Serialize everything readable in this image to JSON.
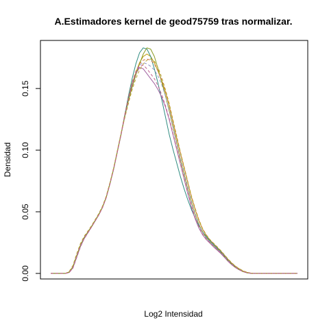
{
  "chart_data": {
    "type": "line",
    "title": "A.Estimadores kernel de geod75759 tras normalizar.",
    "xlabel": "Log2 Intensidad",
    "ylabel": "Densidad",
    "ylim": [
      -0.0045,
      0.189
    ],
    "y_ticks": [
      {
        "value": 0.0,
        "label": "0.00"
      },
      {
        "value": 0.05,
        "label": "0.05"
      },
      {
        "value": 0.1,
        "label": "0.10"
      },
      {
        "value": 0.15,
        "label": "0.15"
      }
    ],
    "grid": false,
    "legend": "none",
    "x": [
      0.0,
      0.015,
      0.03,
      0.045,
      0.06,
      0.075,
      0.09,
      0.105,
      0.12,
      0.135,
      0.15,
      0.165,
      0.18,
      0.195,
      0.21,
      0.225,
      0.24,
      0.255,
      0.27,
      0.285,
      0.3,
      0.315,
      0.33,
      0.345,
      0.36,
      0.375,
      0.39,
      0.405,
      0.42,
      0.435,
      0.45,
      0.465,
      0.48,
      0.495,
      0.51,
      0.525,
      0.54,
      0.555,
      0.57,
      0.585,
      0.6,
      0.615,
      0.63,
      0.645,
      0.66,
      0.675,
      0.69,
      0.705,
      0.72,
      0.735,
      0.75,
      0.765,
      0.78,
      0.795,
      0.81,
      0.825,
      0.84,
      0.855,
      0.87,
      0.885,
      0.9,
      0.915,
      0.93,
      0.945,
      0.96,
      0.975,
      1.0
    ],
    "series": [
      {
        "color": "#C0A010",
        "dash": "",
        "values": [
          0.0,
          0.0,
          0.0,
          0.0,
          0.0,
          0.0012,
          0.0055,
          0.0145,
          0.0228,
          0.029,
          0.0335,
          0.038,
          0.043,
          0.048,
          0.054,
          0.062,
          0.073,
          0.085,
          0.099,
          0.113,
          0.128,
          0.142,
          0.154,
          0.163,
          0.171,
          0.176,
          0.178,
          0.176,
          0.171,
          0.164,
          0.156,
          0.147,
          0.136,
          0.123,
          0.11,
          0.098,
          0.086,
          0.074,
          0.062,
          0.052,
          0.043,
          0.036,
          0.031,
          0.027,
          0.024,
          0.021,
          0.018,
          0.0145,
          0.011,
          0.008,
          0.0055,
          0.0035,
          0.0018,
          0.0008,
          0.0002,
          0.0,
          0.0,
          0.0,
          0.0,
          0.0,
          0.0,
          0.0,
          0.0,
          0.0,
          0.0,
          0.0,
          0.0
        ]
      },
      {
        "color": "#2E8B80",
        "dash": "",
        "values": [
          0.0,
          0.0,
          0.0,
          0.0,
          0.0,
          0.001,
          0.005,
          0.014,
          0.0225,
          0.0288,
          0.0333,
          0.0378,
          0.0428,
          0.0478,
          0.0538,
          0.0618,
          0.0728,
          0.0848,
          0.0988,
          0.1128,
          0.1285,
          0.144,
          0.158,
          0.17,
          0.179,
          0.183,
          0.182,
          0.176,
          0.166,
          0.154,
          0.141,
          0.127,
          0.113,
          0.101,
          0.09,
          0.079,
          0.069,
          0.06,
          0.052,
          0.045,
          0.039,
          0.034,
          0.03,
          0.0265,
          0.0235,
          0.0205,
          0.0175,
          0.014,
          0.0105,
          0.0075,
          0.005,
          0.003,
          0.0015,
          0.0006,
          0.0001,
          0.0,
          0.0,
          0.0,
          0.0,
          0.0,
          0.0,
          0.0,
          0.0,
          0.0,
          0.0,
          0.0,
          0.0
        ]
      },
      {
        "color": "#A060A0",
        "dash": "",
        "values": [
          0.0,
          0.0,
          0.0,
          0.0,
          0.0,
          0.0008,
          0.0045,
          0.013,
          0.0215,
          0.028,
          0.0328,
          0.0375,
          0.0425,
          0.0475,
          0.0535,
          0.0615,
          0.0725,
          0.0845,
          0.0985,
          0.1125,
          0.1275,
          0.141,
          0.153,
          0.162,
          0.167,
          0.166,
          0.162,
          0.158,
          0.154,
          0.149,
          0.143,
          0.135,
          0.125,
          0.113,
          0.101,
          0.089,
          0.077,
          0.065,
          0.054,
          0.0445,
          0.037,
          0.0315,
          0.0275,
          0.0245,
          0.0215,
          0.0188,
          0.016,
          0.0128,
          0.0095,
          0.0068,
          0.0045,
          0.0028,
          0.0014,
          0.0005,
          0.0001,
          0.0,
          0.0,
          0.0,
          0.0,
          0.0,
          0.0,
          0.0,
          0.0,
          0.0,
          0.0,
          0.0,
          0.0
        ]
      },
      {
        "color": "#8A9A20",
        "dash": "",
        "values": [
          0.0,
          0.0,
          0.0,
          0.0,
          0.0,
          0.0011,
          0.0053,
          0.0143,
          0.0226,
          0.0289,
          0.0334,
          0.0379,
          0.0429,
          0.0479,
          0.0539,
          0.0619,
          0.0729,
          0.0849,
          0.0989,
          0.1129,
          0.127,
          0.14,
          0.151,
          0.161,
          0.17,
          0.178,
          0.183,
          0.182,
          0.176,
          0.166,
          0.155,
          0.144,
          0.132,
          0.119,
          0.106,
          0.093,
          0.081,
          0.069,
          0.058,
          0.048,
          0.04,
          0.0335,
          0.029,
          0.0255,
          0.0225,
          0.0197,
          0.0168,
          0.0134,
          0.01,
          0.0072,
          0.0048,
          0.0029,
          0.0014,
          0.0005,
          0.0001,
          0.0,
          0.0,
          0.0,
          0.0,
          0.0,
          0.0,
          0.0,
          0.0,
          0.0,
          0.0,
          0.0,
          0.0
        ]
      },
      {
        "color": "#D07040",
        "dash": "4 3",
        "values": [
          0.0,
          0.0,
          0.0,
          0.0,
          0.0,
          0.0014,
          0.006,
          0.0152,
          0.0235,
          0.0296,
          0.034,
          0.0385,
          0.0435,
          0.0485,
          0.0545,
          0.0625,
          0.0735,
          0.0855,
          0.0995,
          0.1135,
          0.129,
          0.143,
          0.155,
          0.164,
          0.17,
          0.173,
          0.174,
          0.173,
          0.17,
          0.164,
          0.157,
          0.148,
          0.137,
          0.124,
          0.111,
          0.0985,
          0.0865,
          0.0745,
          0.0625,
          0.0525,
          0.0435,
          0.0362,
          0.0312,
          0.0272,
          0.0242,
          0.0212,
          0.0181,
          0.0146,
          0.0111,
          0.0081,
          0.0056,
          0.0036,
          0.0019,
          0.0009,
          0.0003,
          0.0,
          0.0,
          0.0,
          0.0,
          0.0,
          0.0,
          0.0,
          0.0,
          0.0,
          0.0,
          0.0,
          0.0
        ]
      },
      {
        "color": "#9090C0",
        "dash": "4 3",
        "values": [
          0.0,
          0.0,
          0.0,
          0.0,
          0.0,
          0.0009,
          0.0048,
          0.0136,
          0.022,
          0.0284,
          0.033,
          0.0376,
          0.0426,
          0.0476,
          0.0536,
          0.0616,
          0.0726,
          0.0846,
          0.0986,
          0.1126,
          0.128,
          0.142,
          0.154,
          0.163,
          0.169,
          0.171,
          0.17,
          0.168,
          0.165,
          0.16,
          0.153,
          0.144,
          0.133,
          0.12,
          0.107,
          0.0945,
          0.0825,
          0.0705,
          0.059,
          0.049,
          0.0405,
          0.0338,
          0.0292,
          0.0257,
          0.0227,
          0.0199,
          0.017,
          0.0136,
          0.0102,
          0.0073,
          0.0049,
          0.003,
          0.0015,
          0.0006,
          0.0001,
          0.0,
          0.0,
          0.0,
          0.0,
          0.0,
          0.0,
          0.0,
          0.0,
          0.0,
          0.0,
          0.0,
          0.0
        ]
      },
      {
        "color": "#B8A030",
        "dash": "4 3",
        "values": [
          0.0,
          0.0,
          0.0,
          0.0,
          0.0,
          0.0016,
          0.0065,
          0.0158,
          0.024,
          0.03,
          0.0342,
          0.0386,
          0.0436,
          0.0486,
          0.0546,
          0.0626,
          0.0736,
          0.0856,
          0.0996,
          0.1136,
          0.126,
          0.138,
          0.149,
          0.158,
          0.165,
          0.17,
          0.173,
          0.174,
          0.172,
          0.167,
          0.159,
          0.149,
          0.138,
          0.125,
          0.112,
          0.099,
          0.087,
          0.075,
          0.063,
          0.053,
          0.044,
          0.0366,
          0.0315,
          0.0275,
          0.0245,
          0.0215,
          0.0184,
          0.0149,
          0.0114,
          0.0084,
          0.0058,
          0.0038,
          0.0021,
          0.001,
          0.0003,
          0.0,
          0.0,
          0.0,
          0.0,
          0.0,
          0.0,
          0.0,
          0.0,
          0.0,
          0.0,
          0.0,
          0.0
        ]
      },
      {
        "color": "#C06090",
        "dash": "4 3",
        "values": [
          0.0,
          0.0,
          0.0,
          0.0,
          0.0,
          0.0007,
          0.0042,
          0.0126,
          0.0212,
          0.0278,
          0.0326,
          0.0374,
          0.0424,
          0.0474,
          0.0534,
          0.0614,
          0.0724,
          0.0844,
          0.0984,
          0.1124,
          0.1275,
          0.1415,
          0.1535,
          0.1625,
          0.168,
          0.169,
          0.166,
          0.162,
          0.158,
          0.152,
          0.145,
          0.136,
          0.126,
          0.114,
          0.102,
          0.09,
          0.078,
          0.066,
          0.055,
          0.0455,
          0.0378,
          0.032,
          0.028,
          0.0249,
          0.0219,
          0.0192,
          0.0163,
          0.013,
          0.0097,
          0.0069,
          0.0046,
          0.0028,
          0.0014,
          0.0005,
          0.0001,
          0.0,
          0.0,
          0.0,
          0.0,
          0.0,
          0.0,
          0.0,
          0.0,
          0.0,
          0.0,
          0.0,
          0.0
        ]
      }
    ]
  }
}
